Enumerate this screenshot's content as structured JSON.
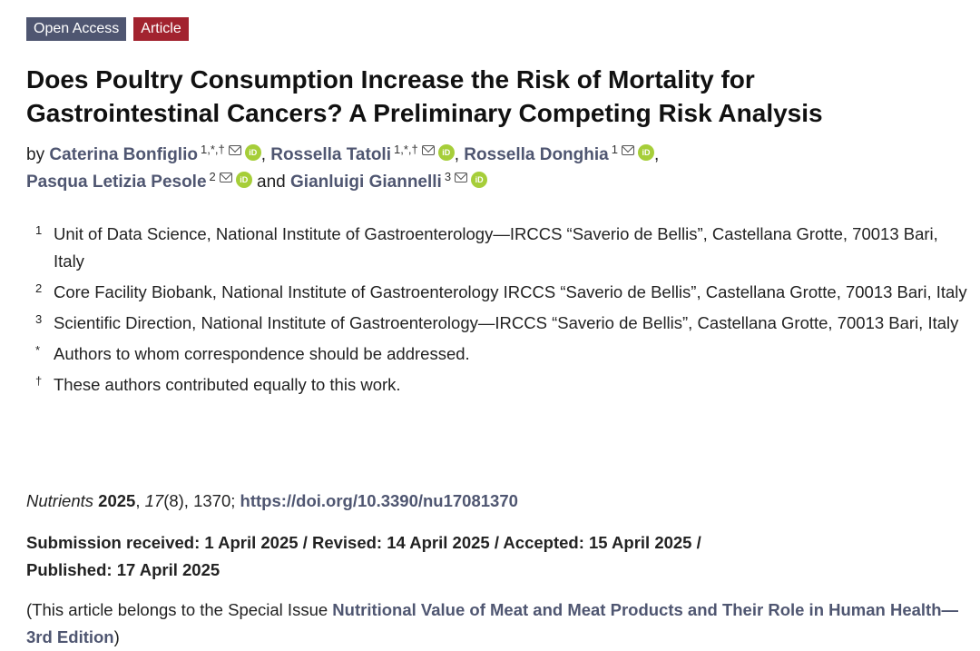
{
  "badges": {
    "open_access": "Open Access",
    "article": "Article"
  },
  "article": {
    "title": "Does Poultry Consumption Increase the Risk of Mortality for Gastrointestinal Cancers? A Preliminary Competing Risk Analysis",
    "by_label": "by",
    "and_label": "and",
    "authors": [
      {
        "name": "Caterina Bonfiglio",
        "sup": "1,*,†"
      },
      {
        "name": "Rossella Tatoli",
        "sup": "1,*,†"
      },
      {
        "name": "Rossella Donghia",
        "sup": "1"
      },
      {
        "name": "Pasqua Letizia Pesole",
        "sup": "2"
      },
      {
        "name": "Gianluigi Giannelli",
        "sup": "3"
      }
    ],
    "orcid_label": "iD"
  },
  "affiliations": [
    {
      "mark": "1",
      "text": "Unit of Data Science, National Institute of Gastroenterology—IRCCS “Saverio de Bellis”, Castellana Grotte, 70013 Bari, Italy"
    },
    {
      "mark": "2",
      "text": "Core Facility Biobank, National Institute of Gastroenterology IRCCS “Saverio de Bellis”, Castellana Grotte, 70013 Bari, Italy"
    },
    {
      "mark": "3",
      "text": "Scientific Direction, National Institute of Gastroenterology—IRCCS “Saverio de Bellis”, Castellana Grotte, 70013 Bari, Italy"
    },
    {
      "mark": "*",
      "text": "Authors to whom correspondence should be addressed."
    },
    {
      "mark": "†",
      "text": "These authors contributed equally to this work."
    }
  ],
  "citation": {
    "journal": "Nutrients",
    "year": "2025",
    "volume": "17",
    "issue_pages": "(8), 1370;",
    "doi": "https://doi.org/10.3390/nu17081370"
  },
  "dates": {
    "line1": "Submission received: 1 April 2025 / Revised: 14 April 2025 / Accepted: 15 April 2025 /",
    "line2": "Published: 17 April 2025"
  },
  "special_issue": {
    "prefix": "(This article belongs to the Special Issue ",
    "link": "Nutritional Value of Meat and Meat Products and Their Role in Human Health—3rd Edition",
    "suffix": ")"
  },
  "colors": {
    "link": "#4f5671",
    "badge_open": "#4f5671",
    "badge_article": "#a2232f",
    "orcid": "#a6ce39"
  }
}
